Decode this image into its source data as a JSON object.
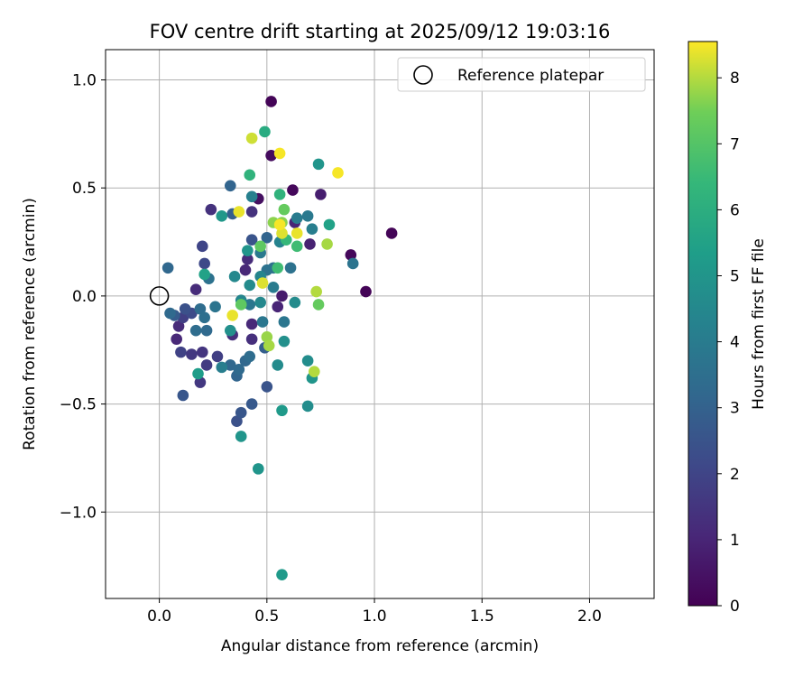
{
  "chart_data": {
    "type": "scatter",
    "title": "FOV centre drift starting at 2025/09/12 19:03:16",
    "xlabel": "Angular distance from reference (arcmin)",
    "ylabel": "Rotation from reference (arcmin)",
    "xlim": [
      -0.25,
      2.3
    ],
    "ylim": [
      -1.4,
      1.14
    ],
    "xticks": [
      0.0,
      0.5,
      1.0,
      1.5,
      2.0
    ],
    "xtick_labels": [
      "0.0",
      "0.5",
      "1.0",
      "1.5",
      "2.0"
    ],
    "yticks": [
      -1.0,
      -0.5,
      0.0,
      0.5,
      1.0
    ],
    "ytick_labels": [
      "−1.0",
      "−0.5",
      "0.0",
      "0.5",
      "1.0"
    ],
    "grid": true,
    "legend": {
      "position": "top-right",
      "entries": [
        "Reference platepar"
      ]
    },
    "reference_point": {
      "x": 0.0,
      "y": 0.0
    },
    "colorbar": {
      "label": "Hours from first FF file",
      "min": 0,
      "max": 8.55,
      "ticks": [
        0,
        1,
        2,
        3,
        4,
        5,
        6,
        7,
        8
      ],
      "colormap": "viridis"
    },
    "series": [
      {
        "name": "FOV centre drift",
        "points": [
          {
            "x": 0.52,
            "y": 0.9,
            "h": 0.1
          },
          {
            "x": 1.08,
            "y": 0.29,
            "h": 0.1
          },
          {
            "x": 0.96,
            "y": 0.02,
            "h": 0.1
          },
          {
            "x": 0.89,
            "y": 0.19,
            "h": 0.2
          },
          {
            "x": 0.62,
            "y": 0.49,
            "h": 0.2
          },
          {
            "x": 0.52,
            "y": 0.65,
            "h": 0.3
          },
          {
            "x": 0.46,
            "y": 0.45,
            "h": 0.4
          },
          {
            "x": 0.75,
            "y": 0.47,
            "h": 0.8
          },
          {
            "x": 0.7,
            "y": 0.24,
            "h": 0.9
          },
          {
            "x": 0.63,
            "y": 0.34,
            "h": 1.0
          },
          {
            "x": 0.57,
            "y": 0.0,
            "h": 0.7
          },
          {
            "x": 0.55,
            "y": -0.05,
            "h": 1.0
          },
          {
            "x": 0.43,
            "y": -0.13,
            "h": 1.1
          },
          {
            "x": 0.43,
            "y": -0.2,
            "h": 1.3
          },
          {
            "x": 0.34,
            "y": -0.18,
            "h": 1.3
          },
          {
            "x": 0.41,
            "y": 0.17,
            "h": 1.2
          },
          {
            "x": 0.4,
            "y": 0.12,
            "h": 1.1
          },
          {
            "x": 0.43,
            "y": 0.39,
            "h": 1.4
          },
          {
            "x": 0.24,
            "y": 0.4,
            "h": 1.4
          },
          {
            "x": 0.17,
            "y": 0.03,
            "h": 1.2
          },
          {
            "x": 0.08,
            "y": -0.2,
            "h": 1.1
          },
          {
            "x": 0.09,
            "y": -0.14,
            "h": 1.2
          },
          {
            "x": 0.11,
            "y": -0.1,
            "h": 1.8
          },
          {
            "x": 0.1,
            "y": -0.26,
            "h": 1.9
          },
          {
            "x": 0.15,
            "y": -0.27,
            "h": 1.6
          },
          {
            "x": 0.2,
            "y": -0.26,
            "h": 1.5
          },
          {
            "x": 0.19,
            "y": -0.4,
            "h": 1.6
          },
          {
            "x": 0.22,
            "y": -0.32,
            "h": 1.7
          },
          {
            "x": 0.27,
            "y": -0.28,
            "h": 1.8
          },
          {
            "x": 0.2,
            "y": 0.23,
            "h": 2.0
          },
          {
            "x": 0.21,
            "y": 0.15,
            "h": 2.1
          },
          {
            "x": 0.15,
            "y": -0.08,
            "h": 2.2
          },
          {
            "x": 0.12,
            "y": -0.06,
            "h": 2.4
          },
          {
            "x": 0.07,
            "y": -0.09,
            "h": 2.8
          },
          {
            "x": 0.11,
            "y": -0.46,
            "h": 2.6
          },
          {
            "x": 0.36,
            "y": -0.58,
            "h": 2.4
          },
          {
            "x": 0.38,
            "y": -0.54,
            "h": 2.6
          },
          {
            "x": 0.43,
            "y": -0.5,
            "h": 2.7
          },
          {
            "x": 0.5,
            "y": -0.42,
            "h": 2.5
          },
          {
            "x": 0.49,
            "y": -0.24,
            "h": 2.9
          },
          {
            "x": 0.36,
            "y": -0.37,
            "h": 3.1
          },
          {
            "x": 0.33,
            "y": -0.32,
            "h": 3.2
          },
          {
            "x": 0.37,
            "y": -0.34,
            "h": 3.3
          },
          {
            "x": 0.4,
            "y": -0.3,
            "h": 3.2
          },
          {
            "x": 0.43,
            "y": 0.26,
            "h": 2.5
          },
          {
            "x": 0.5,
            "y": 0.27,
            "h": 3.1
          },
          {
            "x": 0.33,
            "y": 0.51,
            "h": 3.1
          },
          {
            "x": 0.34,
            "y": 0.38,
            "h": 2.9
          },
          {
            "x": 0.04,
            "y": 0.13,
            "h": 3.2
          },
          {
            "x": 0.05,
            "y": -0.08,
            "h": 3.3
          },
          {
            "x": 0.19,
            "y": -0.06,
            "h": 3.4
          },
          {
            "x": 0.21,
            "y": -0.1,
            "h": 3.5
          },
          {
            "x": 0.23,
            "y": 0.08,
            "h": 3.6
          },
          {
            "x": 0.26,
            "y": -0.05,
            "h": 3.7
          },
          {
            "x": 0.17,
            "y": -0.16,
            "h": 3.4
          },
          {
            "x": 0.22,
            "y": -0.16,
            "h": 3.3
          },
          {
            "x": 0.29,
            "y": -0.33,
            "h": 4.1
          },
          {
            "x": 0.42,
            "y": -0.28,
            "h": 3.4
          },
          {
            "x": 0.42,
            "y": -0.04,
            "h": 3.8
          },
          {
            "x": 0.48,
            "y": -0.12,
            "h": 3.8
          },
          {
            "x": 0.5,
            "y": 0.12,
            "h": 3.6
          },
          {
            "x": 0.47,
            "y": 0.2,
            "h": 3.9
          },
          {
            "x": 0.53,
            "y": 0.13,
            "h": 3.6
          },
          {
            "x": 0.58,
            "y": -0.12,
            "h": 3.8
          },
          {
            "x": 0.61,
            "y": 0.13,
            "h": 3.6
          },
          {
            "x": 0.64,
            "y": 0.36,
            "h": 4.0
          },
          {
            "x": 0.69,
            "y": 0.37,
            "h": 3.9
          },
          {
            "x": 0.71,
            "y": 0.31,
            "h": 4.1
          },
          {
            "x": 0.9,
            "y": 0.15,
            "h": 3.7
          },
          {
            "x": 0.56,
            "y": 0.25,
            "h": 4.3
          },
          {
            "x": 0.43,
            "y": 0.46,
            "h": 4.2
          },
          {
            "x": 0.53,
            "y": 0.04,
            "h": 4.0
          },
          {
            "x": 0.47,
            "y": 0.09,
            "h": 4.4
          },
          {
            "x": 0.38,
            "y": -0.02,
            "h": 4.4
          },
          {
            "x": 0.33,
            "y": -0.16,
            "h": 4.8
          },
          {
            "x": 0.35,
            "y": 0.09,
            "h": 4.5
          },
          {
            "x": 0.42,
            "y": 0.05,
            "h": 4.6
          },
          {
            "x": 0.47,
            "y": -0.03,
            "h": 4.5
          },
          {
            "x": 0.63,
            "y": -0.03,
            "h": 4.6
          },
          {
            "x": 0.69,
            "y": -0.3,
            "h": 4.7
          },
          {
            "x": 0.71,
            "y": -0.38,
            "h": 5.0
          },
          {
            "x": 0.69,
            "y": -0.51,
            "h": 4.7
          },
          {
            "x": 0.58,
            "y": -0.21,
            "h": 4.8
          },
          {
            "x": 0.55,
            "y": -0.32,
            "h": 4.6
          },
          {
            "x": 0.38,
            "y": -0.65,
            "h": 5.0
          },
          {
            "x": 0.46,
            "y": -0.8,
            "h": 5.0
          },
          {
            "x": 0.57,
            "y": -0.53,
            "h": 5.2
          },
          {
            "x": 0.57,
            "y": -1.29,
            "h": 5.2
          },
          {
            "x": 0.29,
            "y": 0.37,
            "h": 5.1
          },
          {
            "x": 0.41,
            "y": 0.21,
            "h": 5.0
          },
          {
            "x": 0.21,
            "y": 0.1,
            "h": 5.5
          },
          {
            "x": 0.18,
            "y": -0.36,
            "h": 5.3
          },
          {
            "x": 0.74,
            "y": 0.61,
            "h": 5.0
          },
          {
            "x": 0.79,
            "y": 0.33,
            "h": 5.5
          },
          {
            "x": 0.49,
            "y": 0.76,
            "h": 5.9
          },
          {
            "x": 0.42,
            "y": 0.56,
            "h": 6.2
          },
          {
            "x": 0.56,
            "y": 0.47,
            "h": 6.2
          },
          {
            "x": 0.59,
            "y": 0.26,
            "h": 6.4
          },
          {
            "x": 0.64,
            "y": 0.23,
            "h": 6.6
          },
          {
            "x": 0.55,
            "y": 0.13,
            "h": 6.6
          },
          {
            "x": 0.38,
            "y": -0.04,
            "h": 7.2
          },
          {
            "x": 0.74,
            "y": -0.04,
            "h": 7.3
          },
          {
            "x": 0.47,
            "y": 0.23,
            "h": 7.2
          },
          {
            "x": 0.58,
            "y": 0.4,
            "h": 7.3
          },
          {
            "x": 0.57,
            "y": 0.34,
            "h": 7.7
          },
          {
            "x": 0.53,
            "y": 0.34,
            "h": 7.7
          },
          {
            "x": 0.5,
            "y": -0.19,
            "h": 7.8
          },
          {
            "x": 0.51,
            "y": -0.23,
            "h": 7.9
          },
          {
            "x": 0.78,
            "y": 0.24,
            "h": 7.9
          },
          {
            "x": 0.72,
            "y": -0.35,
            "h": 8.0
          },
          {
            "x": 0.73,
            "y": 0.02,
            "h": 8.0
          },
          {
            "x": 0.48,
            "y": 0.06,
            "h": 8.3
          },
          {
            "x": 0.43,
            "y": 0.73,
            "h": 8.2
          },
          {
            "x": 0.56,
            "y": 0.66,
            "h": 8.5
          },
          {
            "x": 0.83,
            "y": 0.57,
            "h": 8.5
          },
          {
            "x": 0.37,
            "y": 0.39,
            "h": 8.4
          },
          {
            "x": 0.34,
            "y": -0.09,
            "h": 8.4
          },
          {
            "x": 0.57,
            "y": 0.29,
            "h": 8.3
          },
          {
            "x": 0.64,
            "y": 0.29,
            "h": 8.4
          },
          {
            "x": 0.56,
            "y": 0.33,
            "h": 8.5
          }
        ]
      }
    ]
  }
}
